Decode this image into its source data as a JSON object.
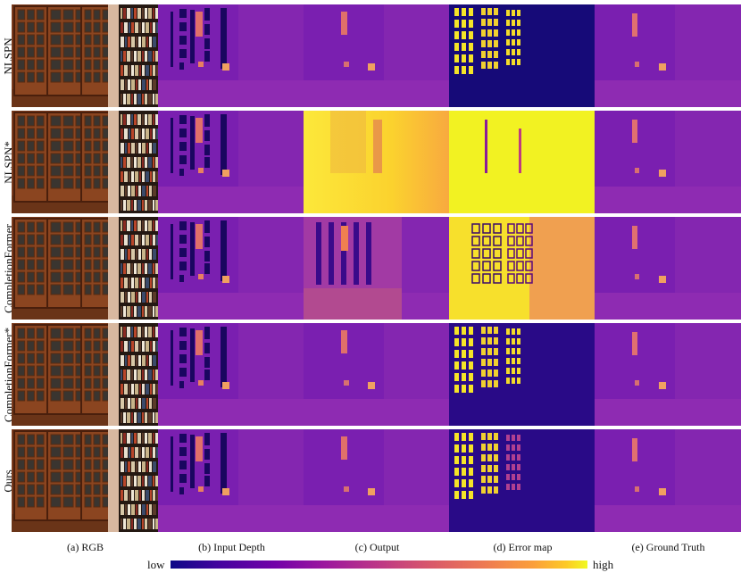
{
  "rows": [
    {
      "label": "NLSPN"
    },
    {
      "label": "NLSPN*"
    },
    {
      "label": "CompletionFormer"
    },
    {
      "label": "CompletionFormer*"
    },
    {
      "label": "Ours"
    }
  ],
  "columns": [
    {
      "label": "(a) RGB"
    },
    {
      "label": "(b) Input Depth"
    },
    {
      "label": "(c) Output"
    },
    {
      "label": "(d) Error map"
    },
    {
      "label": "(e) Ground Truth"
    }
  ],
  "colorbar": {
    "low_label": "low",
    "high_label": "high",
    "colormap": "plasma",
    "colors": [
      "#0d0887",
      "#7201a8",
      "#bd3786",
      "#ed7953",
      "#f0f921"
    ]
  }
}
